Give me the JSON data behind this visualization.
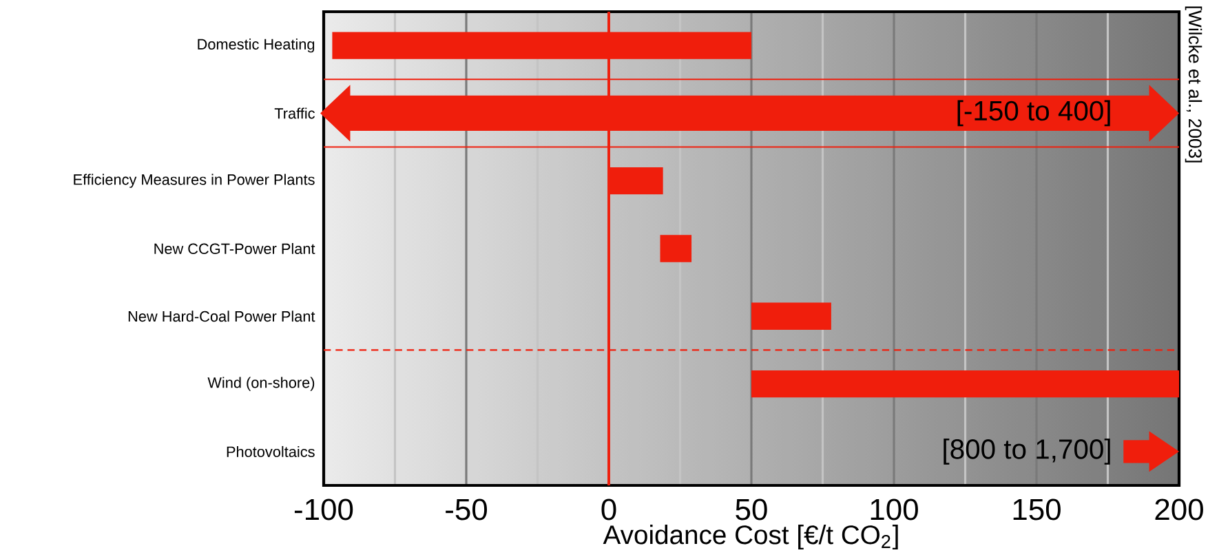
{
  "chart_data": {
    "type": "bar",
    "orientation": "horizontal",
    "xlabel": "Avoidance Cost [€/t CO$_{2}$]",
    "categories": [
      "Domestic Heating",
      "Traffic",
      "Efficiency Measures in Power Plants",
      "New CCGT-Power Plant",
      "New Hard-Coal  Power Plant",
      "Wind (on-shore)",
      "Photovoltaics"
    ],
    "base": [
      -97,
      null,
      0,
      18,
      50,
      50,
      null
    ],
    "values": [
      147,
      null,
      19,
      11,
      28,
      150,
      null
    ],
    "value_labels": [
      null,
      "[-150 to 400]",
      null,
      null,
      null,
      null,
      "[800 to 1,700]"
    ],
    "color": "#f01e0c",
    "xlim": [
      -100,
      200
    ],
    "xticks": [
      -100,
      -50,
      0,
      50,
      100,
      150,
      200
    ],
    "grid": "x",
    "ref_lines": [
      {
        "axis": "x",
        "value": 0,
        "color": "#f01e0c",
        "line_style": "solid"
      }
    ],
    "annotations": [
      "[Wilcke et al., 2003]"
    ]
  }
}
